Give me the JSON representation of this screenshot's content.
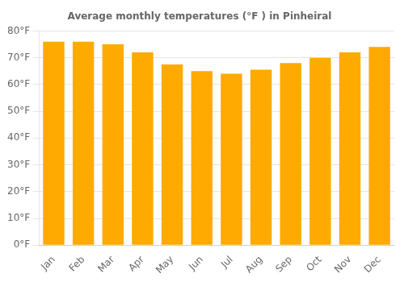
{
  "chart_data": {
    "type": "bar",
    "title": "Average monthly temperatures (°F ) in Pinheiral",
    "categories": [
      "Jan",
      "Feb",
      "Mar",
      "Apr",
      "May",
      "Jun",
      "Jul",
      "Aug",
      "Sep",
      "Oct",
      "Nov",
      "Dec"
    ],
    "values": [
      76,
      76,
      75,
      72,
      67.5,
      65,
      64,
      65.5,
      68,
      70,
      72,
      74
    ],
    "color": "#FFAA00",
    "ylim": [
      0,
      80
    ],
    "yticks": [
      {
        "value": 0,
        "label": "0°F"
      },
      {
        "value": 10,
        "label": "10°F"
      },
      {
        "value": 20,
        "label": "20°F"
      },
      {
        "value": 30,
        "label": "30°F"
      },
      {
        "value": 40,
        "label": "40°F"
      },
      {
        "value": 50,
        "label": "50°F"
      },
      {
        "value": 60,
        "label": "60°F"
      },
      {
        "value": 70,
        "label": "70°F"
      },
      {
        "value": 80,
        "label": "80°F"
      }
    ],
    "grid": true
  }
}
